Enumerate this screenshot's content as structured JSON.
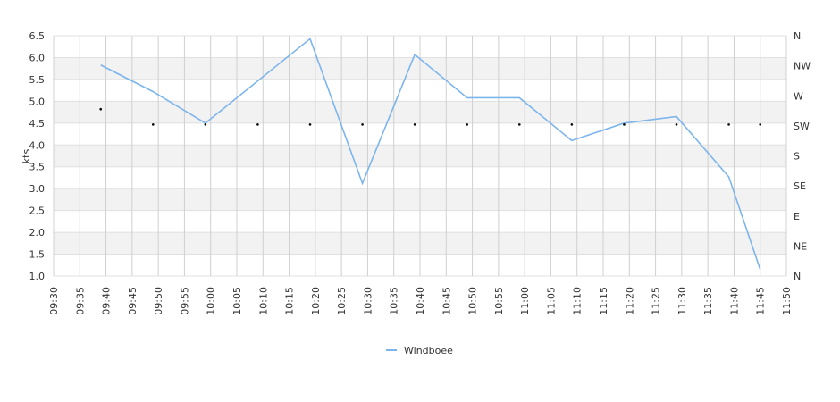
{
  "chart_data": {
    "type": "line",
    "y_label": "kts",
    "xlim": [
      "09:30",
      "11:50"
    ],
    "xticks": [
      "09:30",
      "09:35",
      "09:40",
      "09:45",
      "09:50",
      "09:55",
      "10:00",
      "10:05",
      "10:10",
      "10:15",
      "10:20",
      "10:25",
      "10:30",
      "10:35",
      "10:40",
      "10:45",
      "10:50",
      "10:55",
      "11:00",
      "11:05",
      "11:10",
      "11:15",
      "11:20",
      "11:25",
      "11:30",
      "11:35",
      "11:40",
      "11:45",
      "11:50"
    ],
    "ylim": [
      1.0,
      6.5
    ],
    "yticks": [
      {
        "value": 1.0,
        "label": "1.0"
      },
      {
        "value": 1.5,
        "label": "1.5"
      },
      {
        "value": 2.0,
        "label": "2.0"
      },
      {
        "value": 2.5,
        "label": "2.5"
      },
      {
        "value": 3.0,
        "label": "3.0"
      },
      {
        "value": 3.5,
        "label": "3.5"
      },
      {
        "value": 4.0,
        "label": "4.0"
      },
      {
        "value": 4.5,
        "label": "4.5"
      },
      {
        "value": 5.0,
        "label": "5.0"
      },
      {
        "value": 5.5,
        "label": "5.5"
      },
      {
        "value": 6.0,
        "label": "6.0"
      },
      {
        "value": 6.5,
        "label": "6.5"
      }
    ],
    "y2lim": [
      0,
      360
    ],
    "y2ticks": [
      {
        "value": 0,
        "label": "N"
      },
      {
        "value": 45,
        "label": "NE"
      },
      {
        "value": 90,
        "label": "E"
      },
      {
        "value": 135,
        "label": "SE"
      },
      {
        "value": 180,
        "label": "S"
      },
      {
        "value": 225,
        "label": "SW"
      },
      {
        "value": 270,
        "label": "W"
      },
      {
        "value": 315,
        "label": "NW"
      },
      {
        "value": 360,
        "label": "N"
      }
    ],
    "banded_grid": true,
    "legend": "bottom",
    "series": [
      {
        "name": "Windboee",
        "color": "#7cb5ec",
        "x": [
          "09:39",
          "09:49",
          "09:59",
          "10:19",
          "10:29",
          "10:39",
          "10:49",
          "10:59",
          "11:09",
          "11:19",
          "11:29",
          "11:39",
          "11:45"
        ],
        "values": [
          5.83,
          5.22,
          4.5,
          6.43,
          3.12,
          6.07,
          5.08,
          5.08,
          4.1,
          4.5,
          4.65,
          3.27,
          1.15
        ]
      },
      {
        "color": "#000000",
        "axis": "y2",
        "marker": "dot",
        "x": [
          "09:39",
          "09:49",
          "09:59",
          "10:09",
          "10:19",
          "10:29",
          "10:39",
          "10:49",
          "10:59",
          "11:09",
          "11:19",
          "11:29",
          "11:39",
          "11:45"
        ],
        "values": [
          250,
          227,
          227,
          227,
          227,
          227,
          227,
          227,
          227,
          227,
          227,
          227,
          227,
          227
        ]
      }
    ]
  }
}
